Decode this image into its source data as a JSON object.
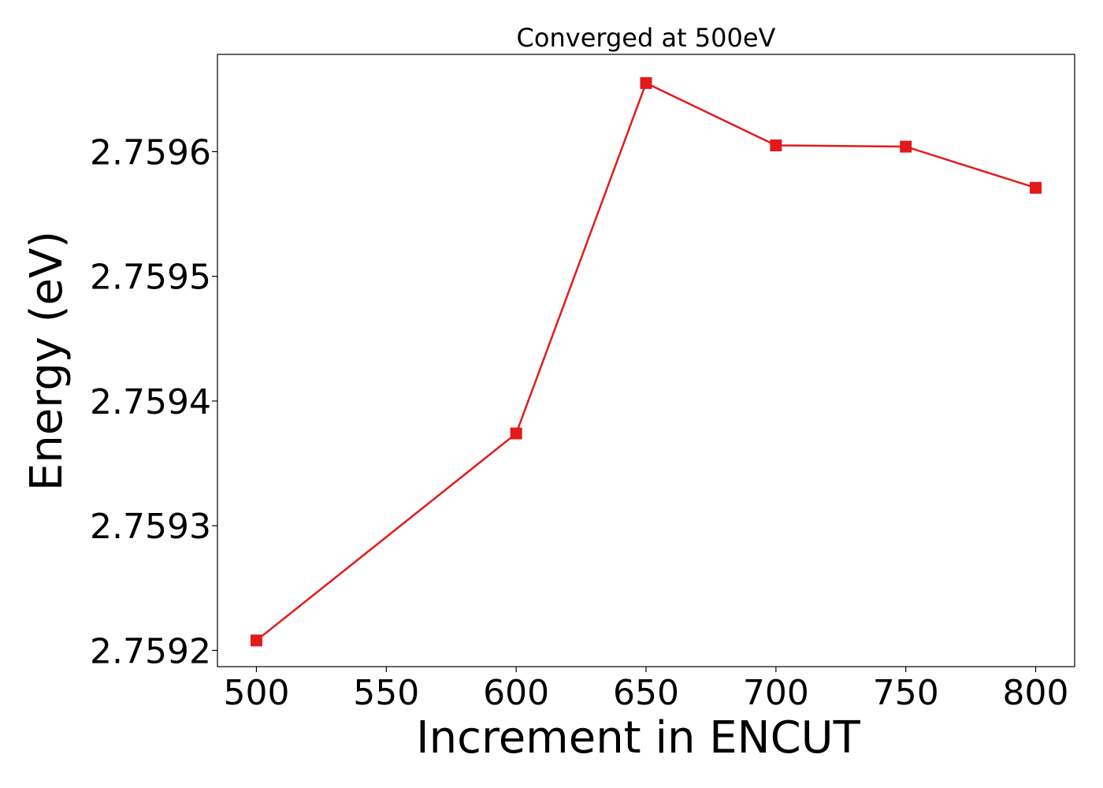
{
  "chart_data": {
    "type": "line",
    "title": "Converged at 500eV",
    "xlabel": "Increment in ENCUT",
    "ylabel": "Energy (eV)",
    "x": [
      500,
      600,
      650,
      700,
      750,
      800
    ],
    "series": [
      {
        "values": [
          2.759208,
          2.759374,
          2.759655,
          2.759605,
          2.759604,
          2.759571
        ],
        "color": "#e31a1c",
        "marker": "square"
      }
    ],
    "xlim": [
      485,
      815
    ],
    "ylim": [
      2.759187,
      2.759678
    ],
    "xticks": [
      500,
      550,
      600,
      650,
      700,
      750,
      800
    ],
    "xtick_labels": [
      "500",
      "550",
      "600",
      "650",
      "700",
      "750",
      "800"
    ],
    "yticks": [
      2.7592,
      2.7593,
      2.7594,
      2.7595,
      2.7596
    ],
    "ytick_labels": [
      "2.7592",
      "2.7593",
      "2.7594",
      "2.7595",
      "2.7596"
    ],
    "grid": false,
    "legend": false
  }
}
